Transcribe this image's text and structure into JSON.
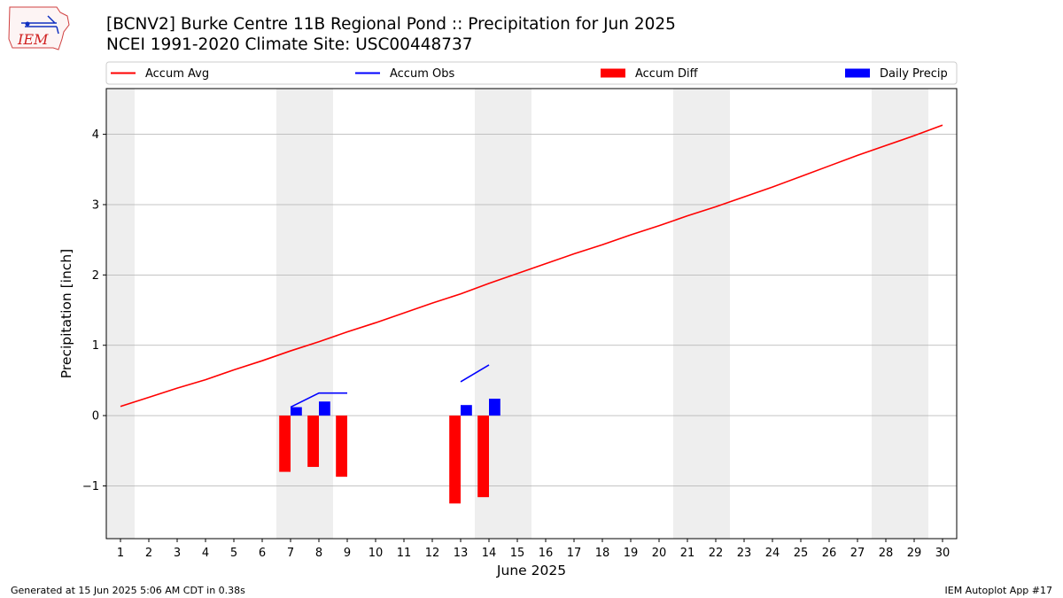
{
  "header": {
    "title_line1": "[BCNV2] Burke Centre 11B Regional Pond :: Precipitation for Jun 2025",
    "title_line2": "NCEI 1991-2020 Climate Site: USC00448737"
  },
  "logo": {
    "text": "IEM"
  },
  "footer": {
    "left": "Generated at 15 Jun 2025 5:06 AM CDT in 0.38s",
    "right": "IEM Autoplot App #17"
  },
  "colors": {
    "avg": "#ff0000",
    "obs": "#0000ff",
    "diff": "#ff0000",
    "daily": "#0000ff",
    "weekend_band": "#eeeeee",
    "grid": "#b0b0b0"
  },
  "chart_data": {
    "type": "bar",
    "title": "[BCNV2] Burke Centre 11B Regional Pond :: Precipitation for Jun 2025",
    "subtitle": "NCEI 1991-2020 Climate Site: USC00448737",
    "xlabel": "June 2025",
    "ylabel": "Precipitation [inch]",
    "xlim": [
      0.5,
      30.5
    ],
    "ylim": [
      -1.75,
      4.65
    ],
    "yticks": [
      -1,
      0,
      1,
      2,
      3,
      4
    ],
    "ytick_labels": [
      "−1",
      "0",
      "1",
      "2",
      "3",
      "4"
    ],
    "categories": [
      1,
      2,
      3,
      4,
      5,
      6,
      7,
      8,
      9,
      10,
      11,
      12,
      13,
      14,
      15,
      16,
      17,
      18,
      19,
      20,
      21,
      22,
      23,
      24,
      25,
      26,
      27,
      28,
      29,
      30
    ],
    "grid": "horizontal",
    "legend": {
      "placement": "top",
      "entries": [
        "Accum Avg",
        "Accum Obs",
        "Accum Diff",
        "Daily Precip"
      ]
    },
    "weekend_bands": [
      [
        0.5,
        1.5
      ],
      [
        6.5,
        8.5
      ],
      [
        13.5,
        15.5
      ],
      [
        20.5,
        22.5
      ],
      [
        27.5,
        29.5
      ]
    ],
    "series": [
      {
        "name": "Accum Avg",
        "kind": "line",
        "x": [
          1,
          2,
          3,
          4,
          5,
          6,
          7,
          8,
          9,
          10,
          11,
          12,
          13,
          14,
          15,
          16,
          17,
          18,
          19,
          20,
          21,
          22,
          23,
          24,
          25,
          26,
          27,
          28,
          29,
          30
        ],
        "values": [
          0.13,
          0.26,
          0.39,
          0.51,
          0.65,
          0.78,
          0.92,
          1.05,
          1.19,
          1.32,
          1.46,
          1.6,
          1.73,
          1.88,
          2.02,
          2.16,
          2.3,
          2.43,
          2.57,
          2.7,
          2.84,
          2.97,
          3.11,
          3.25,
          3.4,
          3.55,
          3.7,
          3.84,
          3.98,
          4.13
        ]
      },
      {
        "name": "Accum Obs",
        "kind": "line",
        "segments": [
          {
            "x": [
              7,
              8,
              9
            ],
            "values": [
              0.12,
              0.32,
              0.32
            ]
          },
          {
            "x": [
              13,
              14
            ],
            "values": [
              0.48,
              0.72
            ]
          }
        ]
      },
      {
        "name": "Accum Diff",
        "kind": "bar",
        "x": [
          7,
          8,
          9,
          13,
          14
        ],
        "values": [
          -0.8,
          -0.73,
          -0.87,
          -1.25,
          -1.16
        ]
      },
      {
        "name": "Daily Precip",
        "kind": "bar",
        "x": [
          7,
          8,
          13,
          14
        ],
        "values": [
          0.12,
          0.2,
          0.15,
          0.24
        ]
      }
    ]
  }
}
